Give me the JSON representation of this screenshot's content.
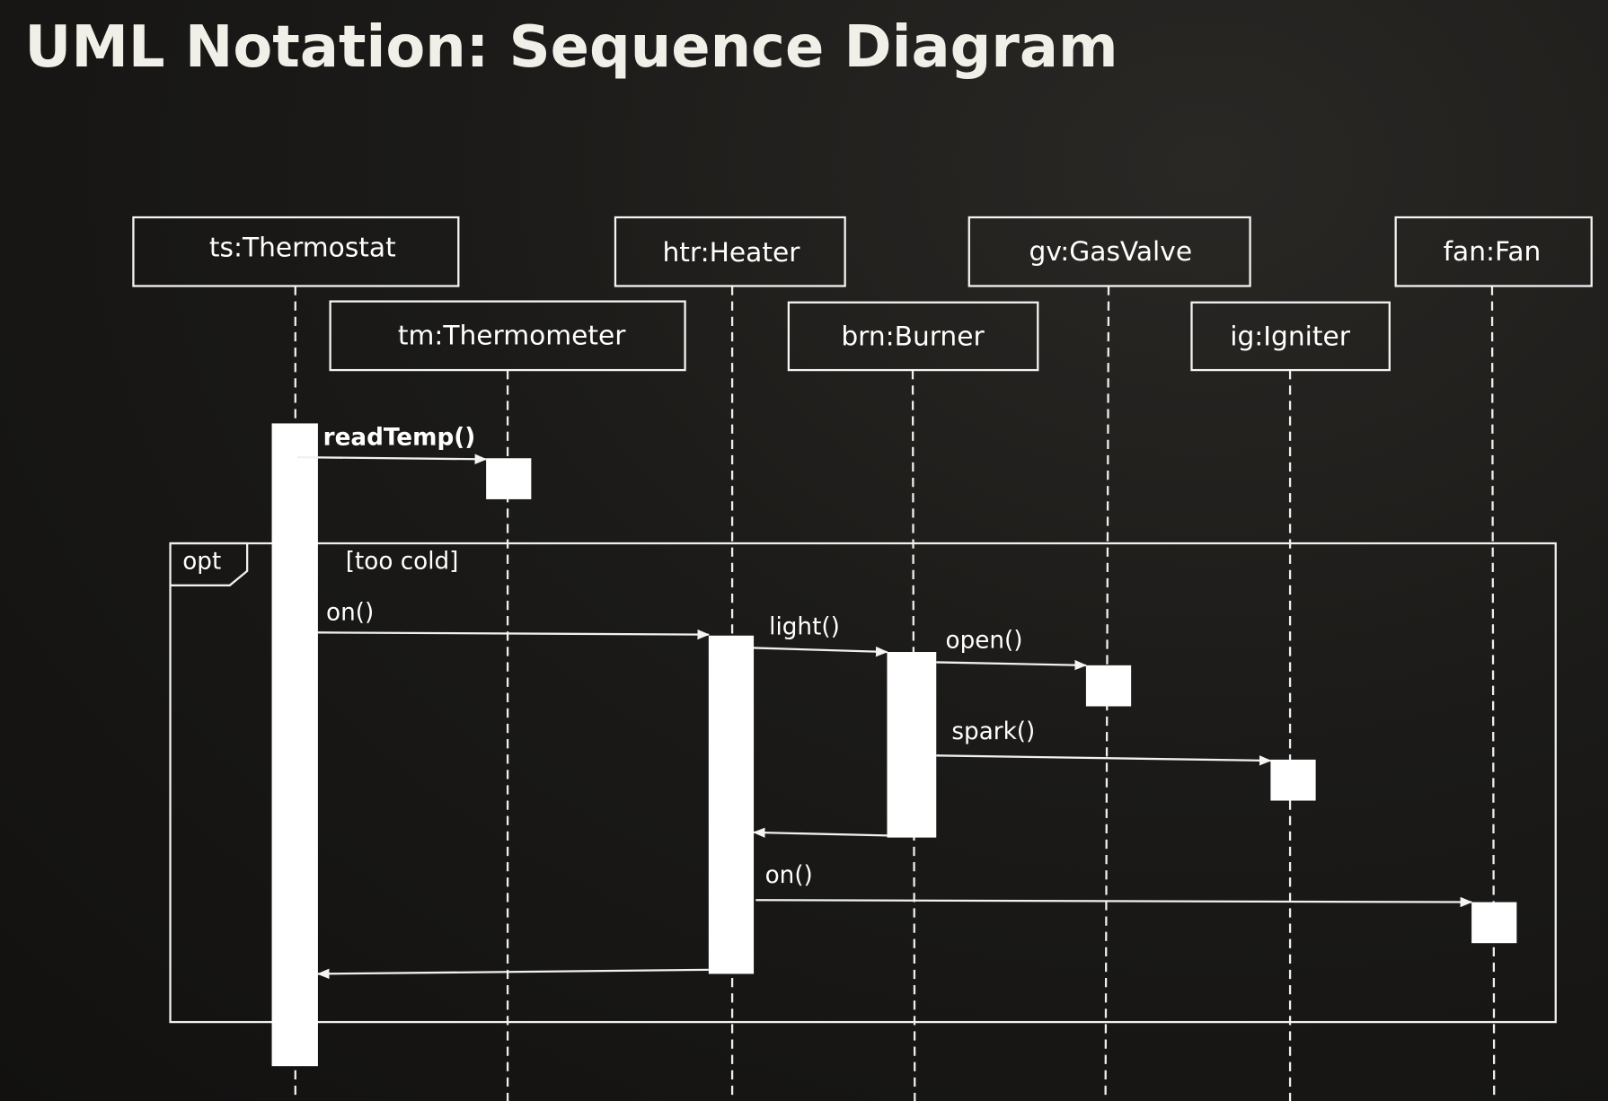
{
  "title": "UML Notation: Sequence Diagram",
  "participants": [
    {
      "id": "ts",
      "label": "ts:Thermostat"
    },
    {
      "id": "tm",
      "label": "tm:Thermometer"
    },
    {
      "id": "htr",
      "label": "htr:Heater"
    },
    {
      "id": "brn",
      "label": "brn:Burner"
    },
    {
      "id": "gv",
      "label": "gv:GasValve"
    },
    {
      "id": "ig",
      "label": "ig:Igniter"
    },
    {
      "id": "fan",
      "label": "fan:Fan"
    }
  ],
  "messages": [
    {
      "from": "ts",
      "to": "tm",
      "label": "readTemp()"
    },
    {
      "from": "ts",
      "to": "htr",
      "label": "on()"
    },
    {
      "from": "htr",
      "to": "brn",
      "label": "light()"
    },
    {
      "from": "brn",
      "to": "gv",
      "label": "open()"
    },
    {
      "from": "brn",
      "to": "ig",
      "label": "spark()"
    },
    {
      "from": "brn",
      "to": "htr",
      "label": "",
      "type": "return"
    },
    {
      "from": "htr",
      "to": "fan",
      "label": "on()"
    },
    {
      "from": "htr",
      "to": "ts",
      "label": "",
      "type": "return"
    }
  ],
  "fragment": {
    "operator": "opt",
    "guard": "[too cold]"
  }
}
